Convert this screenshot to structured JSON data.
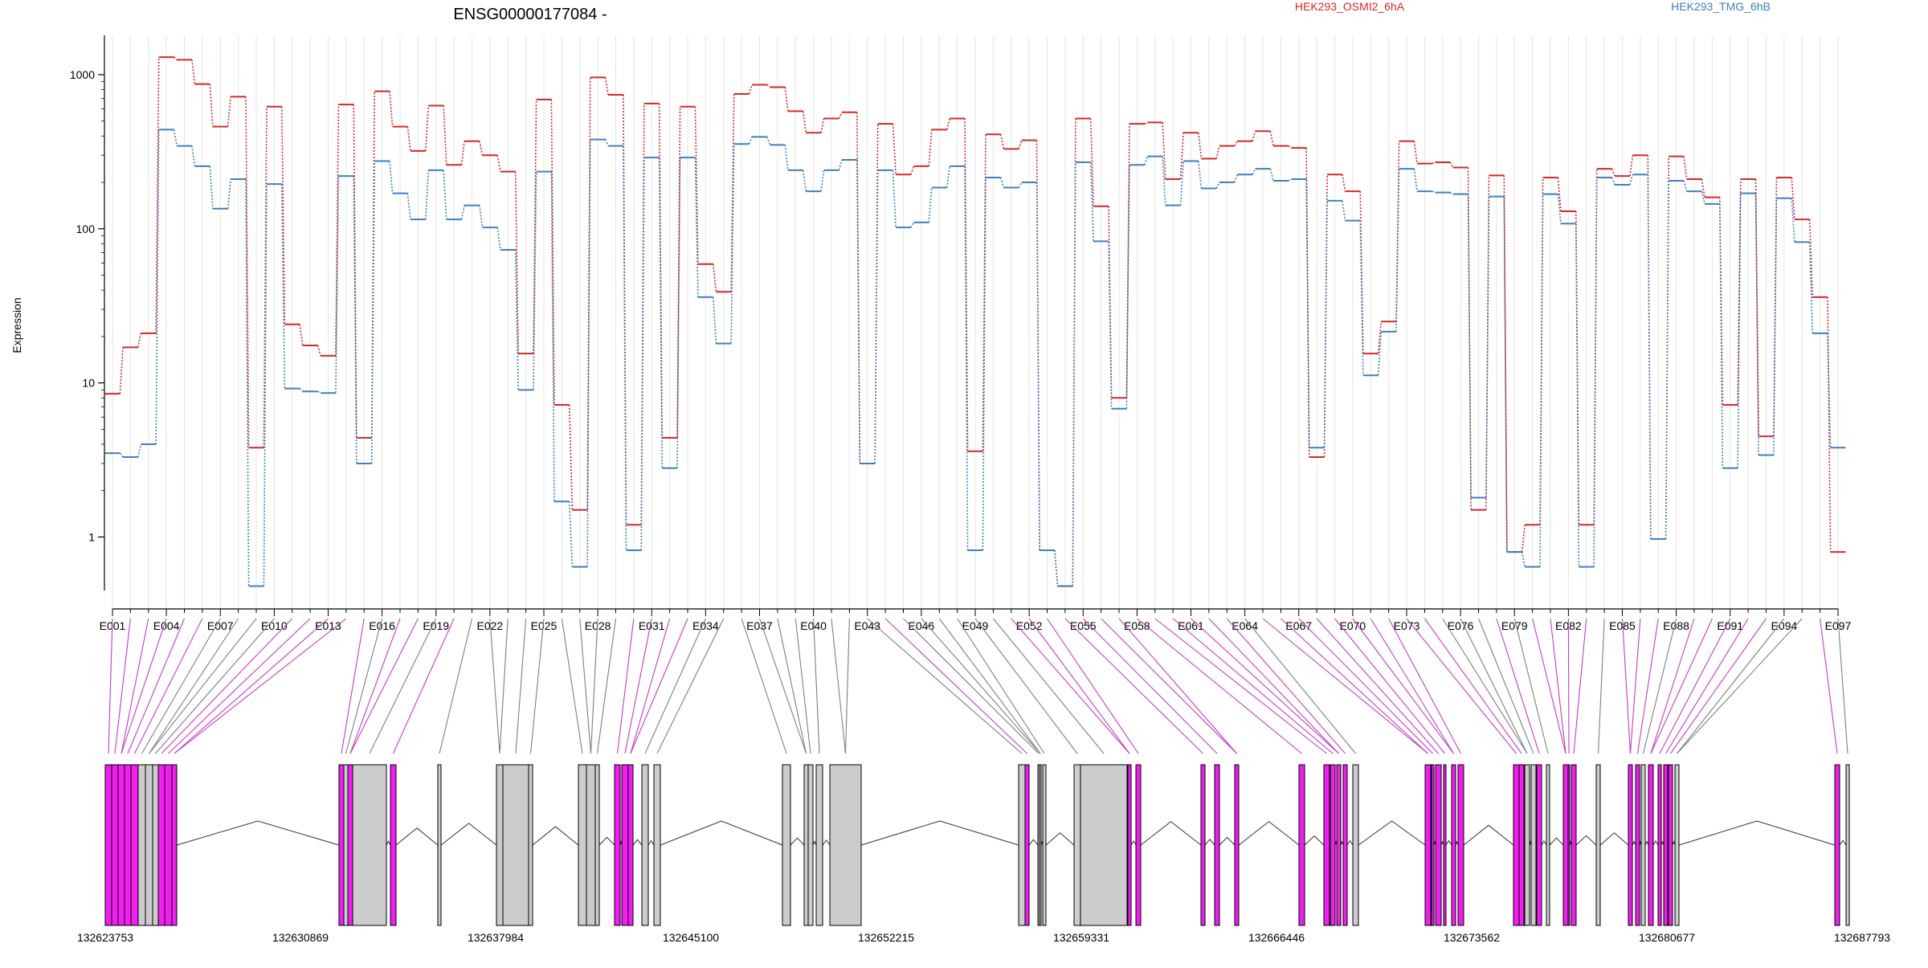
{
  "chart_data": {
    "type": "line",
    "title": "ENSG00000177084 -",
    "ylabel": "Expression",
    "yscale": "log",
    "ylim": [
      0.45,
      1800
    ],
    "y_ticks": [
      "1000",
      "100",
      "10",
      "1"
    ],
    "y_tick_values": [
      1000,
      100,
      10,
      1
    ],
    "exons": [
      "E001",
      "E002",
      "E003",
      "E004",
      "E005",
      "E006",
      "E007",
      "E008",
      "E009",
      "E010",
      "E011",
      "E012",
      "E013",
      "E014",
      "E015",
      "E016",
      "E017",
      "E018",
      "E019",
      "E020",
      "E021",
      "E022",
      "E023",
      "E024",
      "E025",
      "E026",
      "E027",
      "E028",
      "E029",
      "E030",
      "E031",
      "E032",
      "E033",
      "E034",
      "E035",
      "E036",
      "E037",
      "E038",
      "E039",
      "E040",
      "E041",
      "E042",
      "E043",
      "E044",
      "E045",
      "E046",
      "E047",
      "E048",
      "E049",
      "E050",
      "E051",
      "E052",
      "E053",
      "E054",
      "E055",
      "E056",
      "E057",
      "E058",
      "E059",
      "E060",
      "E061",
      "E062",
      "E063",
      "E064",
      "E065",
      "E066",
      "E067",
      "E068",
      "E069",
      "E070",
      "E071",
      "E072",
      "E073",
      "E074",
      "E075",
      "E076",
      "E077",
      "E078",
      "E079",
      "E080",
      "E081",
      "E082",
      "E083",
      "E084",
      "E085",
      "E086",
      "E087",
      "E088",
      "E089",
      "E090",
      "E091",
      "E092",
      "E093",
      "E094",
      "E095",
      "E096",
      "E097"
    ],
    "x_tick_labels": [
      "E001",
      "E004",
      "E007",
      "E010",
      "E013",
      "E016",
      "E019",
      "E022",
      "E025",
      "E028",
      "E031",
      "E034",
      "E037",
      "E040",
      "E043",
      "E046",
      "E049",
      "E052",
      "E055",
      "E058",
      "E061",
      "E064",
      "E067",
      "E070",
      "E073",
      "E076",
      "E079",
      "E082",
      "E085",
      "E088",
      "E091",
      "E094",
      "E097"
    ],
    "series": [
      {
        "name": "HEK293_OSMI2_6hA",
        "color": "#d62728",
        "values": [
          8.5,
          17,
          21,
          1300,
          1250,
          870,
          460,
          720,
          3.8,
          620,
          24,
          17.5,
          15,
          640,
          4.4,
          780,
          460,
          320,
          630,
          260,
          370,
          300,
          235,
          15.5,
          690,
          7.2,
          1.5,
          960,
          740,
          1.2,
          650,
          4.4,
          620,
          59,
          39,
          750,
          860,
          830,
          580,
          420,
          520,
          570,
          3.0,
          480,
          225,
          255,
          440,
          520,
          3.6,
          410,
          330,
          375,
          0.82,
          0.48,
          520,
          140,
          8.0,
          480,
          490,
          210,
          420,
          285,
          345,
          370,
          430,
          345,
          335,
          3.3,
          225,
          175,
          15.5,
          25,
          370,
          265,
          270,
          250,
          1.5,
          222,
          0.8,
          1.2,
          215,
          130,
          1.2,
          245,
          220,
          300,
          0.97,
          295,
          210,
          160,
          7.2,
          210,
          4.5,
          215,
          115,
          36,
          0.8
        ]
      },
      {
        "name": "HEK293_TMG_6hB",
        "color": "#3f7fbf",
        "values": [
          3.5,
          3.3,
          4.0,
          440,
          345,
          255,
          135,
          210,
          0.48,
          195,
          9.2,
          8.8,
          8.6,
          220,
          3.0,
          275,
          170,
          115,
          240,
          115,
          142,
          102,
          73,
          9.0,
          235,
          1.7,
          0.64,
          380,
          345,
          0.82,
          290,
          2.8,
          290,
          36,
          18,
          355,
          395,
          350,
          240,
          175,
          240,
          280,
          3.0,
          240,
          102,
          110,
          185,
          255,
          0.82,
          215,
          185,
          200,
          0.82,
          0.48,
          270,
          83,
          6.8,
          260,
          295,
          142,
          275,
          183,
          200,
          225,
          245,
          205,
          210,
          3.8,
          152,
          113,
          11.2,
          21.5,
          245,
          175,
          172,
          168,
          1.8,
          162,
          0.8,
          0.64,
          168,
          108,
          0.64,
          215,
          193,
          225,
          0.97,
          205,
          175,
          145,
          2.8,
          170,
          3.4,
          158,
          82,
          21,
          3.8
        ]
      }
    ],
    "genomic_axis": {
      "ticks": [
        "132623753",
        "132630869",
        "132637984",
        "132645100",
        "132652215",
        "132659331",
        "132666446",
        "132673562",
        "132680677",
        "132687793"
      ],
      "range": [
        132623753,
        132687793
      ]
    }
  }
}
